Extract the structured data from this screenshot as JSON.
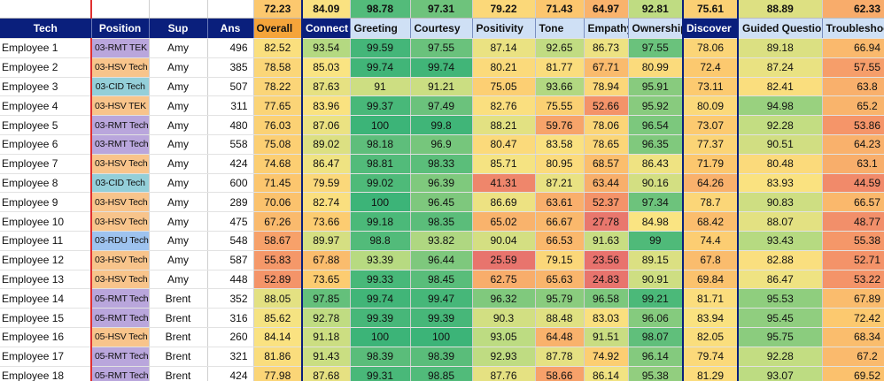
{
  "averages": [
    "72.23",
    "84.09",
    "98.78",
    "97.31",
    "79.22",
    "71.43",
    "64.97",
    "92.81",
    "75.61",
    "88.89",
    "62.33"
  ],
  "headers": {
    "tech": "Tech",
    "position": "Position",
    "sup": "Sup",
    "ans": "Ans",
    "overall": "Overall",
    "connect": "Connect",
    "greeting": "Greeting",
    "courtesy": "Courtesy",
    "positivity": "Positivity",
    "tone": "Tone",
    "empathy": "Empathy",
    "ownership": "Ownership",
    "discover": "Discover",
    "guided_questions": "Guided Questions",
    "troubleshoot": "Troubleshoo"
  },
  "position_colors": {
    "03-RMT TEK": "#b9a6dc",
    "03-RMT Tech": "#b9a6dc",
    "03-HSV Tech": "#f8c48b",
    "03-HSV TEK": "#f8c48b",
    "03-CID Tech": "#94cfd9",
    "03-RDU Tech": "#9ec3ef",
    "05-RMT Tech": "#b9a6dc",
    "05-HSV Tech": "#f8c48b"
  },
  "rows": [
    {
      "name": "Employee 1",
      "position": "03-RMT TEK",
      "sup": "Amy",
      "ans": "496",
      "v": [
        "82.52",
        "93.54",
        "99.59",
        "97.55",
        "87.14",
        "92.65",
        "86.73",
        "97.55",
        "78.06",
        "89.18",
        "66.94"
      ]
    },
    {
      "name": "Employee 2",
      "position": "03-HSV Tech",
      "sup": "Amy",
      "ans": "385",
      "v": [
        "78.58",
        "85.03",
        "99.74",
        "99.74",
        "80.21",
        "81.77",
        "67.71",
        "80.99",
        "72.4",
        "87.24",
        "57.55"
      ]
    },
    {
      "name": "Employee 3",
      "position": "03-CID Tech",
      "sup": "Amy",
      "ans": "507",
      "v": [
        "78.22",
        "87.63",
        "91",
        "91.21",
        "75.05",
        "93.66",
        "78.94",
        "95.91",
        "73.11",
        "82.41",
        "63.8"
      ]
    },
    {
      "name": "Employee 4",
      "position": "03-HSV TEK",
      "sup": "Amy",
      "ans": "311",
      "v": [
        "77.65",
        "83.96",
        "99.37",
        "97.49",
        "82.76",
        "75.55",
        "52.66",
        "95.92",
        "80.09",
        "94.98",
        "65.2"
      ]
    },
    {
      "name": "Employee 5",
      "position": "03-RMT Tech",
      "sup": "Amy",
      "ans": "480",
      "v": [
        "76.03",
        "87.06",
        "100",
        "99.8",
        "88.21",
        "59.76",
        "78.06",
        "96.54",
        "73.07",
        "92.28",
        "53.86"
      ]
    },
    {
      "name": "Employee 6",
      "position": "03-RMT Tech",
      "sup": "Amy",
      "ans": "558",
      "v": [
        "75.08",
        "89.02",
        "98.18",
        "96.9",
        "80.47",
        "83.58",
        "78.65",
        "96.35",
        "77.37",
        "90.51",
        "64.23"
      ]
    },
    {
      "name": "Employee 7",
      "position": "03-HSV Tech",
      "sup": "Amy",
      "ans": "424",
      "v": [
        "74.68",
        "86.47",
        "98.81",
        "98.33",
        "85.71",
        "80.95",
        "68.57",
        "86.43",
        "71.79",
        "80.48",
        "63.1"
      ]
    },
    {
      "name": "Employee 8",
      "position": "03-CID Tech",
      "sup": "Amy",
      "ans": "600",
      "v": [
        "71.45",
        "79.59",
        "99.02",
        "96.39",
        "41.31",
        "87.21",
        "63.44",
        "90.16",
        "64.26",
        "83.93",
        "44.59"
      ]
    },
    {
      "name": "Employee 9",
      "position": "03-HSV Tech",
      "sup": "Amy",
      "ans": "289",
      "v": [
        "70.06",
        "82.74",
        "100",
        "96.45",
        "86.69",
        "63.61",
        "52.37",
        "97.34",
        "78.7",
        "90.83",
        "66.57"
      ]
    },
    {
      "name": "Employee 10",
      "position": "03-HSV Tech",
      "sup": "Amy",
      "ans": "475",
      "v": [
        "67.26",
        "73.66",
        "99.18",
        "98.35",
        "65.02",
        "66.67",
        "27.78",
        "84.98",
        "68.42",
        "88.07",
        "48.77"
      ]
    },
    {
      "name": "Employee 11",
      "position": "03-RDU Tech",
      "sup": "Amy",
      "ans": "548",
      "v": [
        "58.67",
        "89.97",
        "98.8",
        "93.82",
        "90.04",
        "66.53",
        "91.63",
        "99",
        "74.4",
        "93.43",
        "55.38"
      ]
    },
    {
      "name": "Employee 12",
      "position": "03-HSV Tech",
      "sup": "Amy",
      "ans": "587",
      "v": [
        "55.83",
        "67.88",
        "93.39",
        "96.44",
        "25.59",
        "79.15",
        "23.56",
        "89.15",
        "67.8",
        "82.88",
        "52.71"
      ]
    },
    {
      "name": "Employee 13",
      "position": "03-HSV Tech",
      "sup": "Amy",
      "ans": "448",
      "v": [
        "52.89",
        "73.65",
        "99.33",
        "98.45",
        "62.75",
        "65.63",
        "24.83",
        "90.91",
        "69.84",
        "86.47",
        "53.22"
      ]
    },
    {
      "name": "Employee 14",
      "position": "05-RMT Tech",
      "sup": "Brent",
      "ans": "352",
      "v": [
        "88.05",
        "97.85",
        "99.74",
        "99.47",
        "96.32",
        "95.79",
        "96.58",
        "99.21",
        "81.71",
        "95.53",
        "67.89"
      ]
    },
    {
      "name": "Employee 15",
      "position": "05-RMT Tech",
      "sup": "Brent",
      "ans": "316",
      "v": [
        "85.62",
        "92.78",
        "99.39",
        "99.39",
        "90.3",
        "88.48",
        "83.03",
        "96.06",
        "83.94",
        "95.45",
        "72.42"
      ]
    },
    {
      "name": "Employee 16",
      "position": "05-HSV Tech",
      "sup": "Brent",
      "ans": "260",
      "v": [
        "84.14",
        "91.18",
        "100",
        "100",
        "93.05",
        "64.48",
        "91.51",
        "98.07",
        "82.05",
        "95.75",
        "68.34"
      ]
    },
    {
      "name": "Employee 17",
      "position": "05-RMT Tech",
      "sup": "Brent",
      "ans": "321",
      "v": [
        "81.86",
        "91.43",
        "98.39",
        "98.39",
        "92.93",
        "87.78",
        "74.92",
        "96.14",
        "79.74",
        "92.28",
        "67.2"
      ]
    },
    {
      "name": "Employee 18",
      "position": "05-RMT Tech",
      "sup": "Brent",
      "ans": "424",
      "v": [
        "77.98",
        "87.68",
        "99.31",
        "98.85",
        "87.76",
        "58.66",
        "86.14",
        "95.38",
        "81.29",
        "93.07",
        "69.52"
      ]
    }
  ]
}
